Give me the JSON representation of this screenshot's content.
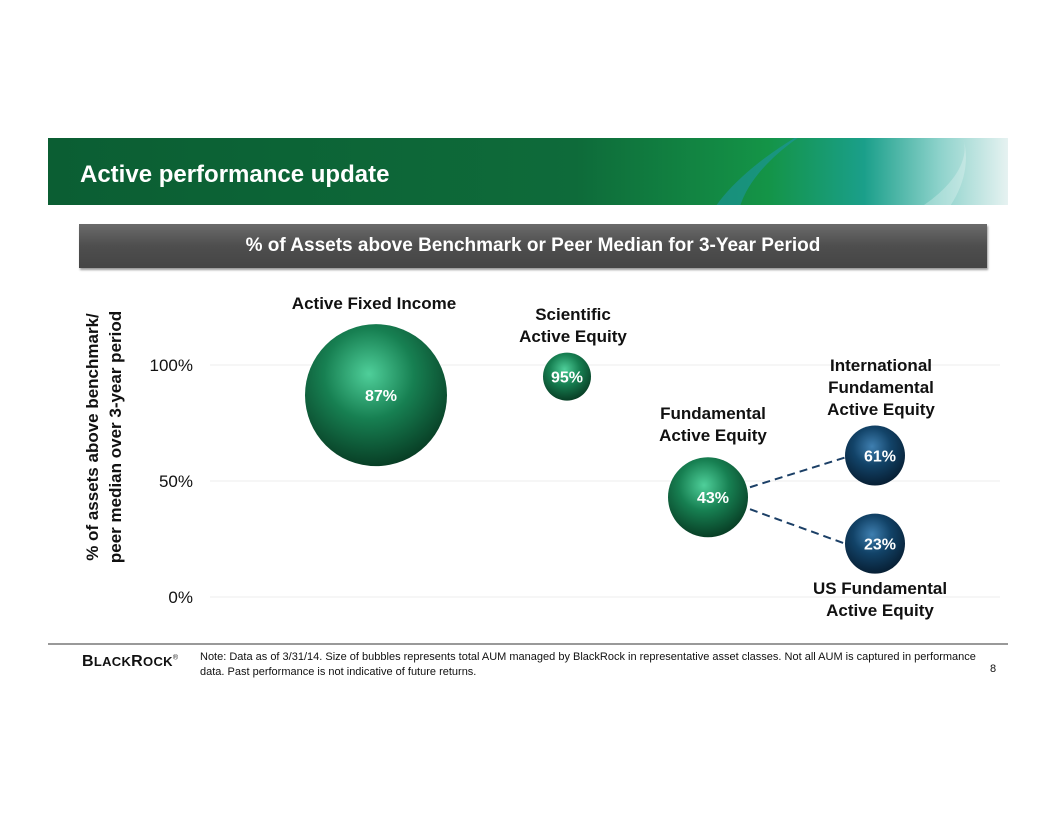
{
  "header": {
    "title": "Active performance update"
  },
  "subheader": "% of Assets above Benchmark or Peer Median for 3-Year Period",
  "footer": {
    "logo": "BlackRock",
    "note": "Note: Data as of 3/31/14. Size of bubbles represents total AUM managed by BlackRock in representative asset classes. Not all AUM is captured in performance data. Past performance is not indicative of future returns.",
    "page": "8"
  },
  "chart_data": {
    "type": "bubble",
    "title": "% of Assets above Benchmark or Peer Median for 3-Year Period",
    "ylabel_lines": [
      "% of assets above benchmark/",
      "peer median over 3-year period"
    ],
    "ylim": [
      0,
      100
    ],
    "yticks": [
      {
        "value": 0,
        "label": "0%"
      },
      {
        "value": 50,
        "label": "50%"
      },
      {
        "value": 100,
        "label": "100%"
      }
    ],
    "grid": true,
    "series": [
      {
        "name": "Active Fixed Income",
        "name_lines": [
          "Active Fixed Income"
        ],
        "value": 87,
        "label": "87%",
        "color": "#0e6e45"
      },
      {
        "name": "Scientific Active Equity",
        "name_lines": [
          "Scientific",
          "Active Equity"
        ],
        "value": 95,
        "label": "95%",
        "color": "#0e6e45"
      },
      {
        "name": "Fundamental Active Equity",
        "name_lines": [
          "Fundamental",
          "Active Equity"
        ],
        "value": 43,
        "label": "43%",
        "color": "#0e6e45"
      },
      {
        "name": "International Fundamental Active Equity",
        "name_lines": [
          "International",
          "Fundamental",
          "Active Equity"
        ],
        "value": 61,
        "label": "61%",
        "color": "#0d3a5e"
      },
      {
        "name": "US Fundamental Active Equity",
        "name_lines": [
          "US Fundamental",
          "Active Equity"
        ],
        "value": 23,
        "label": "23%",
        "color": "#0d3a5e"
      }
    ]
  }
}
